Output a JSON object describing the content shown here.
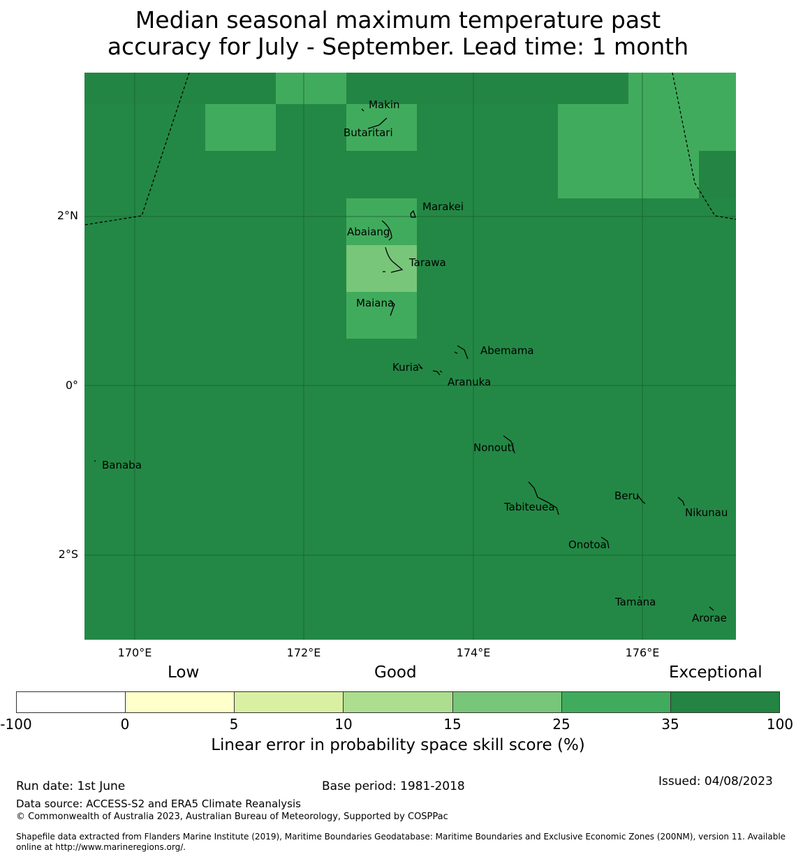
{
  "title": {
    "line1": "Median seasonal maximum temperature past",
    "line2": "accuracy for July - September. Lead time: 1 month"
  },
  "map": {
    "background_color": "#238845",
    "y_ticks": [
      "2°N",
      "0°",
      "2°S"
    ],
    "x_ticks": [
      "170°E",
      "172°E",
      "174°E",
      "176°E"
    ],
    "places": [
      "Makin",
      "Butaritari",
      "Marakei",
      "Abaiang",
      "Tarawa",
      "Maiana",
      "Abemama",
      "Kuria",
      "Aranuka",
      "Nonouti",
      "Banaba",
      "Beru",
      "Nikunau",
      "Tabiteuea",
      "Onotoa",
      "Tamana",
      "Arorae"
    ]
  },
  "legend": {
    "categories": [
      "Low",
      "Good",
      "Exceptional"
    ],
    "colors": [
      "#ffffff",
      "#ffffcc",
      "#d9f0a3",
      "#addd8e",
      "#78c679",
      "#41ab5d",
      "#238443"
    ],
    "ticks": [
      "-100",
      "0",
      "5",
      "10",
      "15",
      "25",
      "35",
      "100"
    ],
    "label": "Linear error in probability space skill score (%)"
  },
  "footer": {
    "run_date": "Run date: 1st June",
    "base_period": "Base period: 1981-2018",
    "issued": "Issued: 04/08/2023",
    "data_source": "Data source: ACCESS-S2 and ERA5 Climate Reanalysis",
    "copyright": "© Commonwealth of Australia 2023, Australian Bureau of Meteorology, Supported by COSPPac",
    "shapefile": "Shapefile data extracted from Flanders Marine Institute (2019), Maritime Boundaries Geodatabase: Maritime Boundaries and Exclusive Economic Zones (200NM), version 11. Available online at http://www.marineregions.org/."
  }
}
